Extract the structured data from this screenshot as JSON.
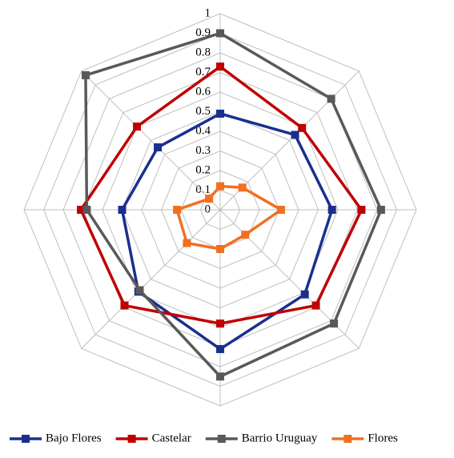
{
  "chart_data": {
    "type": "radar",
    "categories": [
      null,
      null,
      null,
      null,
      null,
      null,
      null,
      null
    ],
    "ylim": [
      0,
      1
    ],
    "yticks": [
      0,
      0.1,
      0.2,
      0.3,
      0.4,
      0.5,
      0.6,
      0.7,
      0.8,
      0.9,
      1
    ],
    "grid": true,
    "legend": "bottom",
    "series": [
      {
        "name": "Bajo Flores",
        "color": "#1a2f8f",
        "values": [
          0.49,
          0.54,
          0.57,
          0.61,
          0.71,
          0.59,
          0.5,
          0.45
        ]
      },
      {
        "name": "Castelar",
        "color": "#c00000",
        "values": [
          0.73,
          0.59,
          0.72,
          0.69,
          0.58,
          0.69,
          0.71,
          0.6
        ]
      },
      {
        "name": "Barrio Uruguay",
        "color": "#595959",
        "values": [
          0.9,
          0.8,
          0.82,
          0.82,
          0.85,
          0.58,
          0.68,
          0.97
        ]
      },
      {
        "name": "Flores",
        "color": "#f07020",
        "values": [
          0.12,
          0.16,
          0.31,
          0.18,
          0.2,
          0.24,
          0.22,
          0.08
        ]
      }
    ]
  }
}
